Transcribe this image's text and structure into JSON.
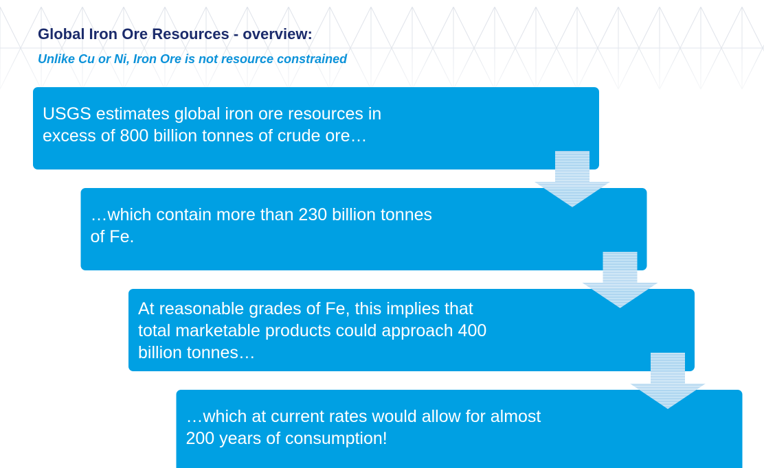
{
  "header": {
    "title": "Global Iron Ore Resources - overview:",
    "subtitle": "Unlike Cu or Ni, Iron Ore is not resource constrained"
  },
  "steps": [
    {
      "lines": [
        "USGS estimates global iron ore resources in",
        "excess of 800 billion tonnes of crude ore…"
      ]
    },
    {
      "lines": [
        "…which contain more than 230 billion tonnes",
        "of Fe."
      ]
    },
    {
      "lines": [
        "At reasonable grades of Fe, this implies that",
        "total marketable products could approach 400",
        "billion tonnes…"
      ]
    },
    {
      "lines": [
        "…which at current rates would allow for almost",
        "200 years of consumption!"
      ]
    }
  ]
}
